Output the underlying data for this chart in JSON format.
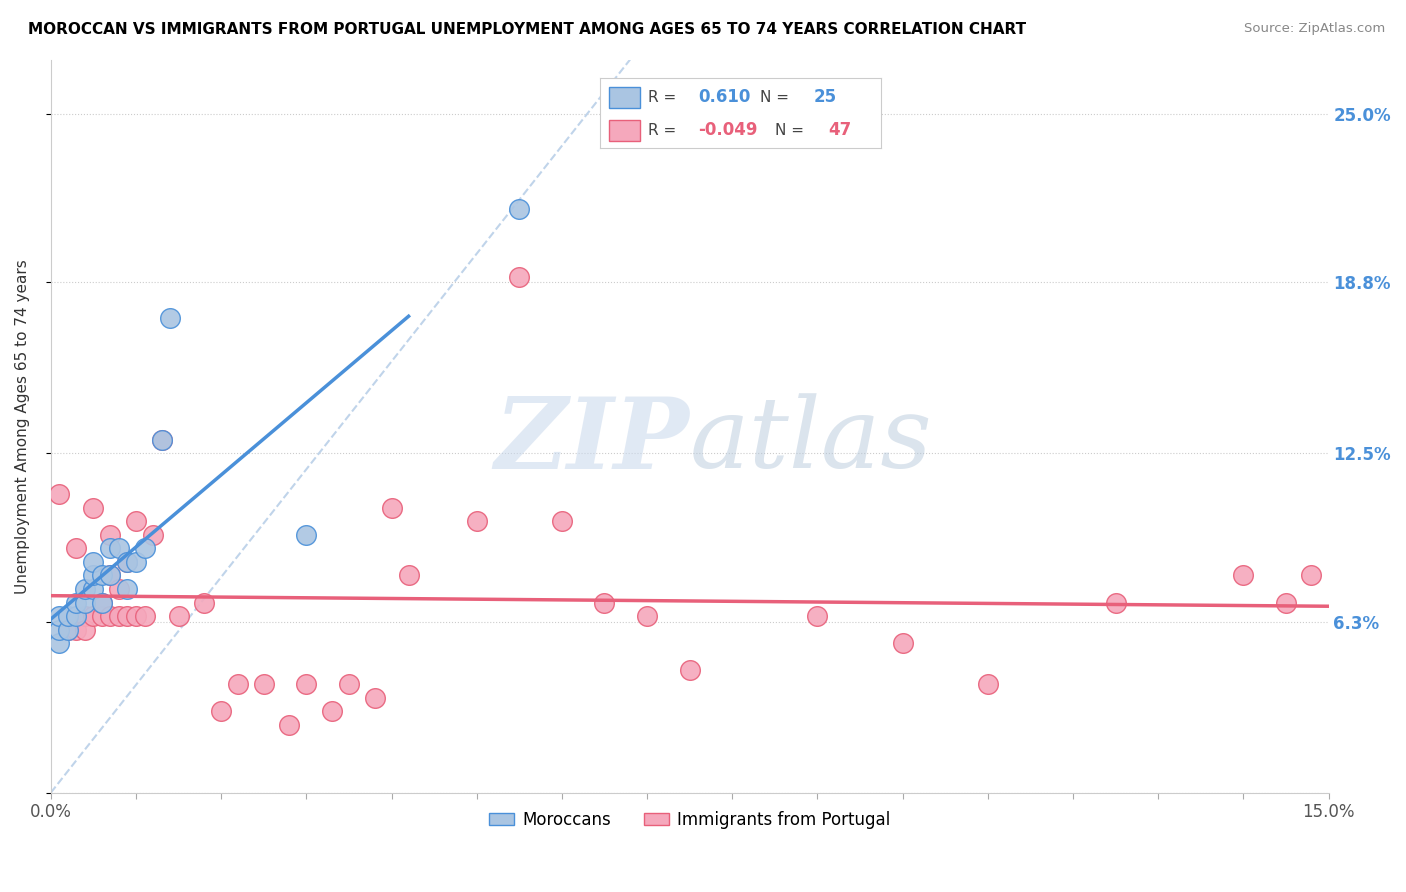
{
  "title": "MOROCCAN VS IMMIGRANTS FROM PORTUGAL UNEMPLOYMENT AMONG AGES 65 TO 74 YEARS CORRELATION CHART",
  "source": "Source: ZipAtlas.com",
  "ylabel": "Unemployment Among Ages 65 to 74 years",
  "xlim": [
    0.0,
    0.15
  ],
  "ylim": [
    0.0,
    0.27
  ],
  "ytick_values": [
    0.0,
    0.063,
    0.125,
    0.188,
    0.25
  ],
  "ytick_labels": [
    "",
    "6.3%",
    "12.5%",
    "18.8%",
    "25.0%"
  ],
  "xtick_values": [
    0.0,
    0.01,
    0.02,
    0.03,
    0.04,
    0.05,
    0.06,
    0.07,
    0.08,
    0.09,
    0.1,
    0.11,
    0.12,
    0.13,
    0.14,
    0.15
  ],
  "moroccan_R": "0.610",
  "moroccan_N": "25",
  "portugal_R": "-0.049",
  "portugal_N": "47",
  "moroccan_color": "#aac5e2",
  "portugal_color": "#f5a8bc",
  "moroccan_line_color": "#4a90d9",
  "portugal_line_color": "#e8607a",
  "diagonal_color": "#c0d4ea",
  "watermark_zip": "ZIP",
  "watermark_atlas": "atlas",
  "moroccan_x": [
    0.001,
    0.001,
    0.001,
    0.002,
    0.002,
    0.003,
    0.003,
    0.004,
    0.004,
    0.005,
    0.005,
    0.005,
    0.006,
    0.006,
    0.007,
    0.007,
    0.008,
    0.009,
    0.009,
    0.01,
    0.011,
    0.013,
    0.014,
    0.03,
    0.055
  ],
  "moroccan_y": [
    0.055,
    0.06,
    0.065,
    0.06,
    0.065,
    0.065,
    0.07,
    0.07,
    0.075,
    0.075,
    0.08,
    0.085,
    0.07,
    0.08,
    0.08,
    0.09,
    0.09,
    0.075,
    0.085,
    0.085,
    0.09,
    0.13,
    0.175,
    0.095,
    0.215
  ],
  "portugal_x": [
    0.001,
    0.002,
    0.003,
    0.003,
    0.004,
    0.004,
    0.005,
    0.005,
    0.006,
    0.006,
    0.007,
    0.007,
    0.007,
    0.008,
    0.008,
    0.009,
    0.009,
    0.01,
    0.01,
    0.011,
    0.012,
    0.013,
    0.015,
    0.018,
    0.02,
    0.022,
    0.025,
    0.028,
    0.03,
    0.033,
    0.035,
    0.038,
    0.04,
    0.042,
    0.05,
    0.055,
    0.06,
    0.065,
    0.07,
    0.075,
    0.09,
    0.1,
    0.11,
    0.125,
    0.14,
    0.145,
    0.148
  ],
  "portugal_y": [
    0.11,
    0.06,
    0.09,
    0.06,
    0.065,
    0.06,
    0.065,
    0.105,
    0.065,
    0.07,
    0.065,
    0.08,
    0.095,
    0.065,
    0.075,
    0.065,
    0.085,
    0.065,
    0.1,
    0.065,
    0.095,
    0.13,
    0.065,
    0.07,
    0.03,
    0.04,
    0.04,
    0.025,
    0.04,
    0.03,
    0.04,
    0.035,
    0.105,
    0.08,
    0.1,
    0.19,
    0.1,
    0.07,
    0.065,
    0.045,
    0.065,
    0.055,
    0.04,
    0.07,
    0.08,
    0.07,
    0.08
  ]
}
